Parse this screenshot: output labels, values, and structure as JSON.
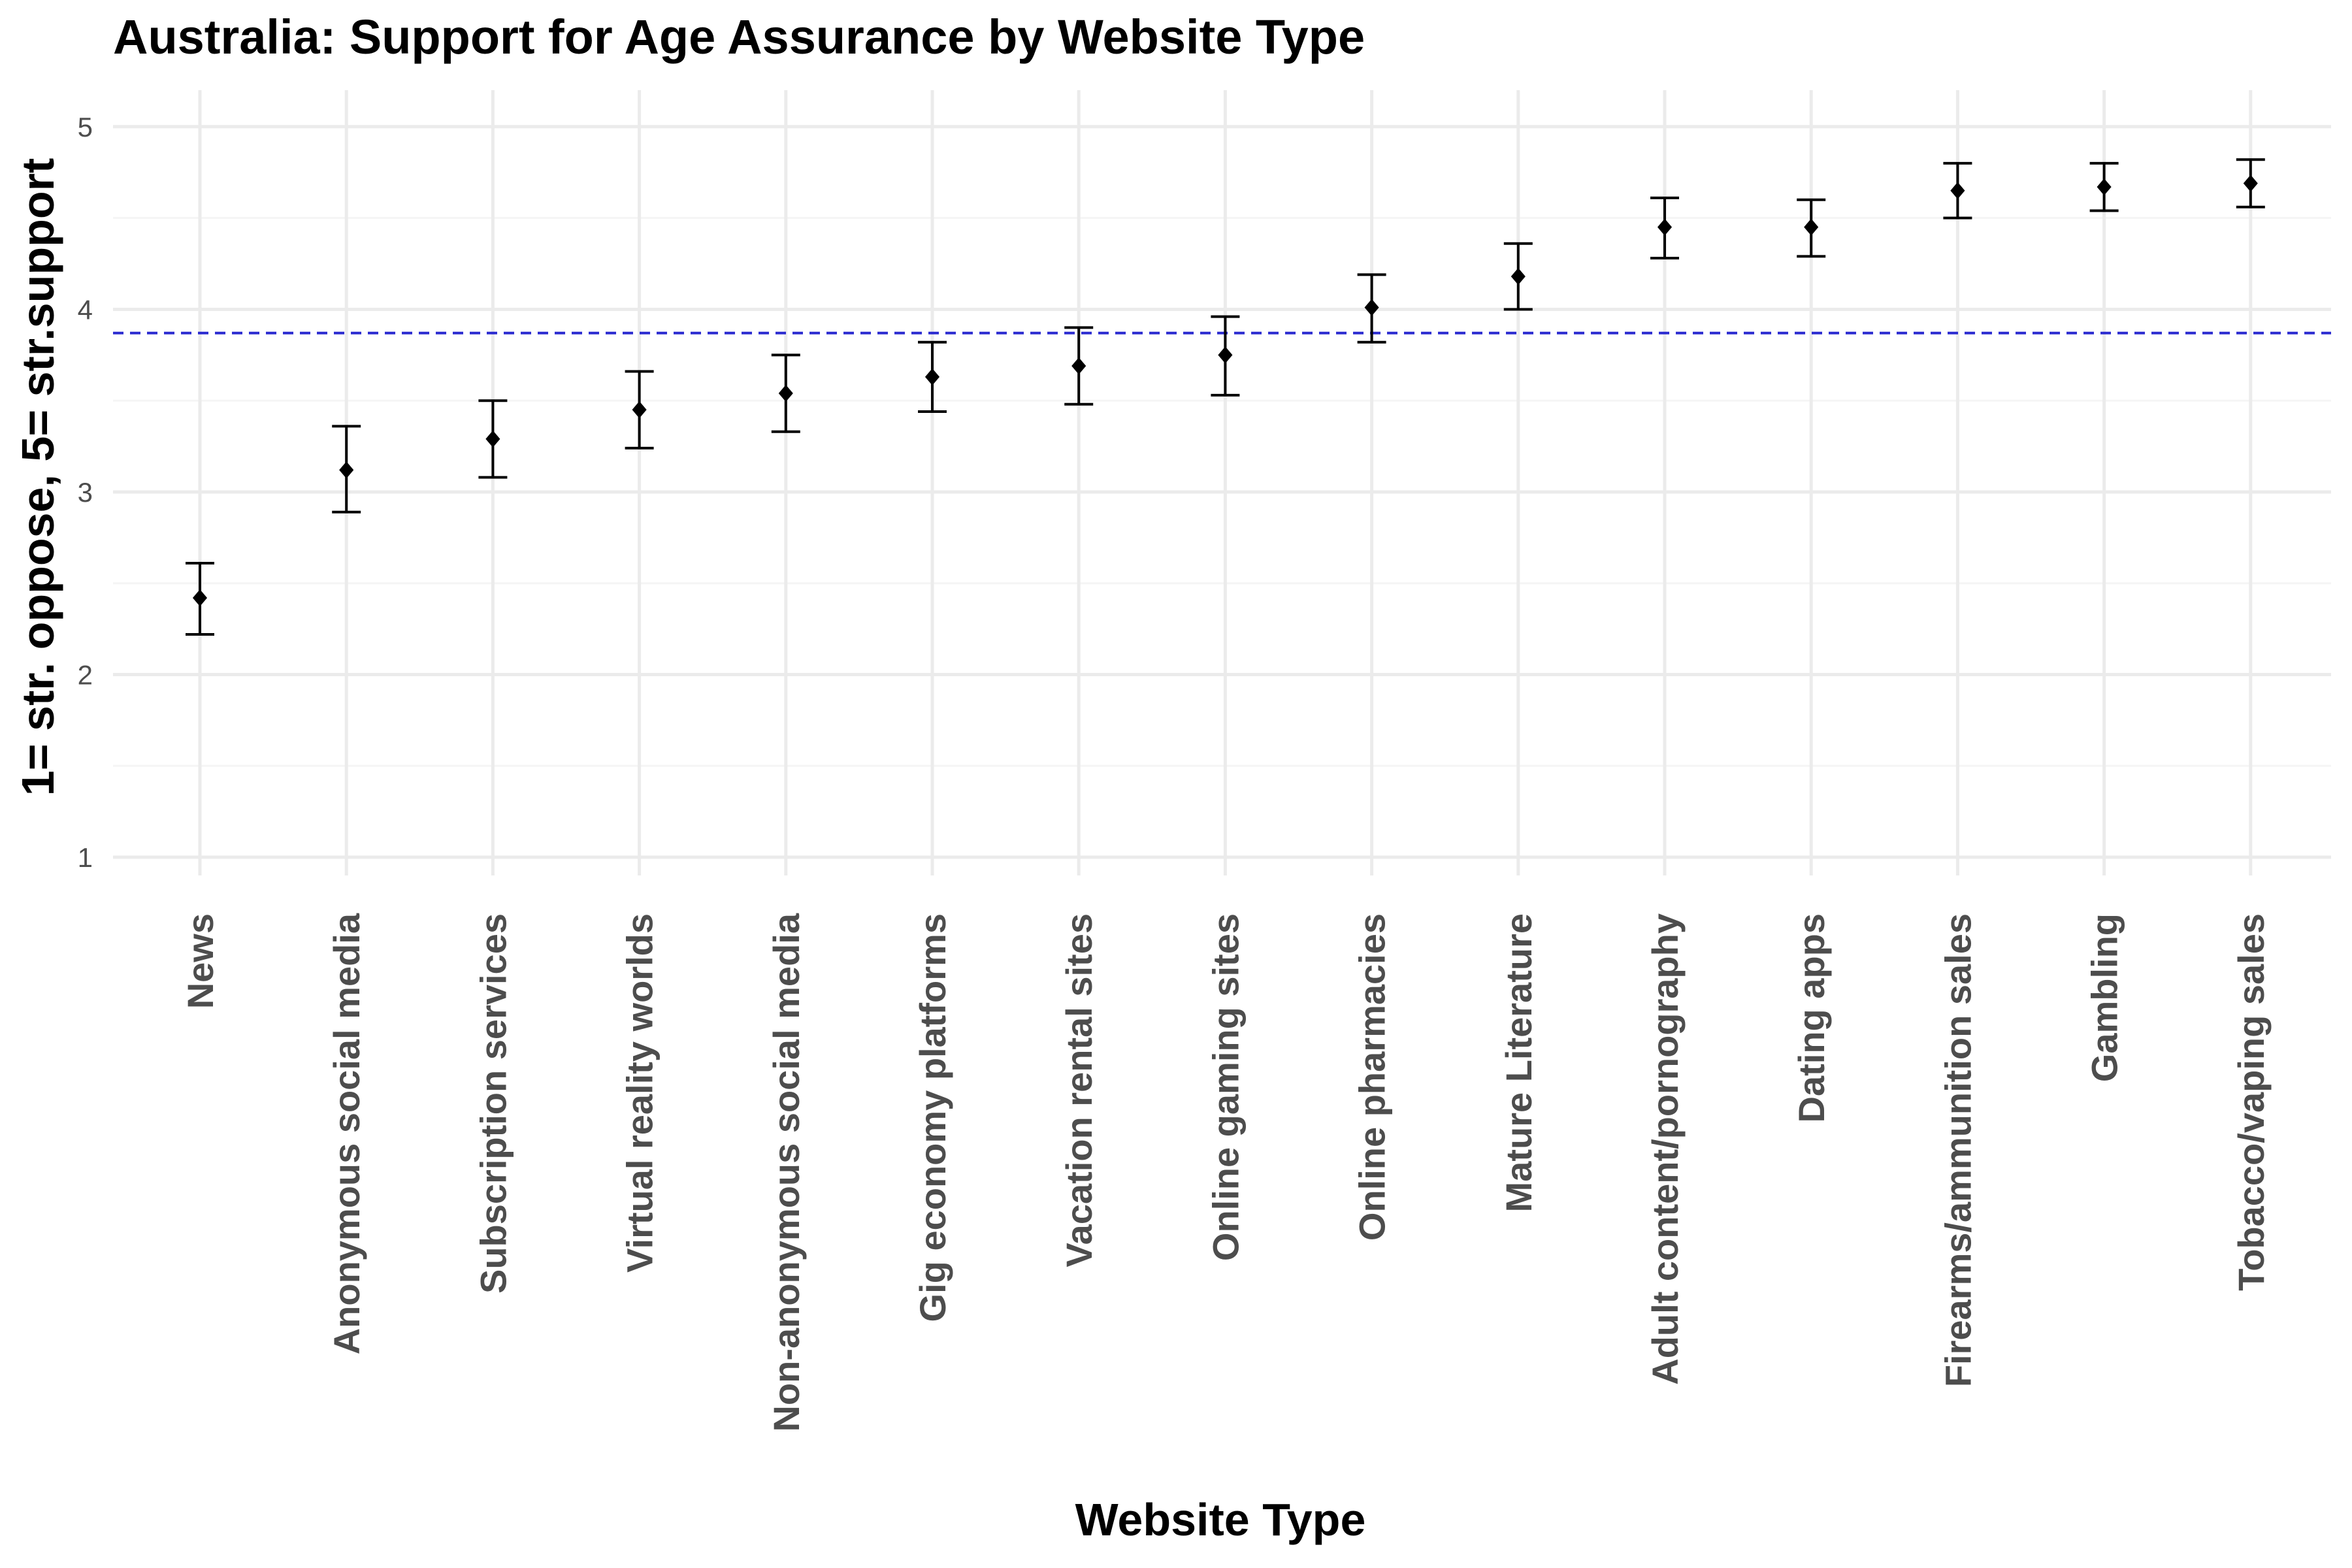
{
  "chart_data": {
    "type": "scatter",
    "title": "Australia: Support for Age Assurance by Website Type",
    "xlabel": "Website Type",
    "ylabel": "1= str. oppose, 5= str.support",
    "ylim": [
      0.9,
      5.2
    ],
    "yticks": [
      1,
      2,
      3,
      4,
      5
    ],
    "grid": true,
    "reference_line": {
      "y": 3.87,
      "style": "dashed",
      "color": "#2b2bd0"
    },
    "categories": [
      "News",
      "Anonymous social media",
      "Subscription services",
      "Virtual reality worlds",
      "Non-anonymous social media",
      "Gig economy platforms",
      "Vacation rental sites",
      "Online gaming sites",
      "Online pharmacies",
      "Mature Literature",
      "Adult content/pornography",
      "Dating apps",
      "Firearms/ammunition sales",
      "Gambling",
      "Tobacco/vaping sales"
    ],
    "values": [
      2.42,
      3.12,
      3.29,
      3.45,
      3.54,
      3.63,
      3.69,
      3.75,
      4.01,
      4.18,
      4.45,
      4.45,
      4.65,
      4.67,
      4.69
    ],
    "error_low": [
      2.22,
      2.89,
      3.08,
      3.24,
      3.33,
      3.44,
      3.48,
      3.53,
      3.82,
      4.0,
      4.28,
      4.29,
      4.5,
      4.54,
      4.56
    ],
    "error_high": [
      2.61,
      3.36,
      3.5,
      3.66,
      3.75,
      3.82,
      3.9,
      3.96,
      4.19,
      4.36,
      4.61,
      4.6,
      4.8,
      4.8,
      4.82
    ],
    "colors": {
      "points": "#000000",
      "grid_major": "#ebebeb",
      "grid_minor": "#f5f5f5",
      "reference_line": "#2b2bd0"
    }
  }
}
